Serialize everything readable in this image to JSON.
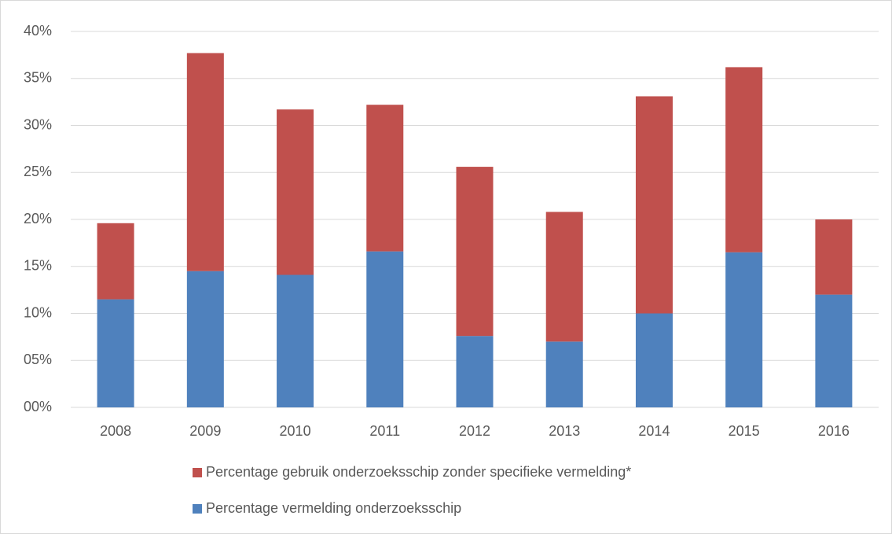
{
  "chart_data": {
    "type": "bar",
    "stacked": true,
    "categories": [
      "2008",
      "2009",
      "2010",
      "2011",
      "2012",
      "2013",
      "2014",
      "2015",
      "2016"
    ],
    "series": [
      {
        "name": "Percentage vermelding onderzoeksschip",
        "color": "#4f81bd",
        "values": [
          11.5,
          14.5,
          14.1,
          16.6,
          7.6,
          7.0,
          10.0,
          16.5,
          12.0
        ]
      },
      {
        "name": "Percentage gebruik onderzoeksschip zonder specifieke vermelding*",
        "color": "#c0504d",
        "values": [
          8.1,
          23.2,
          17.6,
          15.6,
          18.0,
          13.8,
          23.1,
          19.7,
          8.0
        ]
      }
    ],
    "ylim": [
      0,
      40
    ],
    "yticks": [
      {
        "value": 0,
        "label": "00%"
      },
      {
        "value": 5,
        "label": "05%"
      },
      {
        "value": 10,
        "label": "10%"
      },
      {
        "value": 15,
        "label": "15%"
      },
      {
        "value": 20,
        "label": "20%"
      },
      {
        "value": 25,
        "label": "25%"
      },
      {
        "value": 30,
        "label": "30%"
      },
      {
        "value": 35,
        "label": "35%"
      },
      {
        "value": 40,
        "label": "40%"
      }
    ],
    "grid": true,
    "legend": "bottom"
  }
}
